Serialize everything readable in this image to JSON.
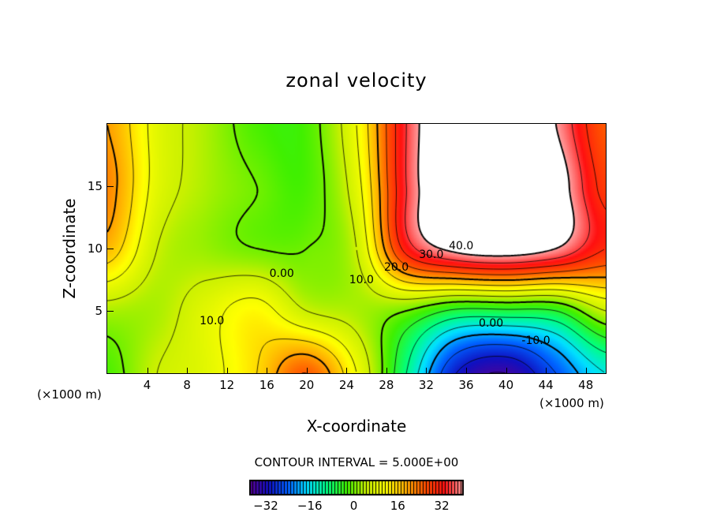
{
  "chart_data": {
    "type": "heatmap",
    "subtype": "filled contour",
    "title": "zonal velocity",
    "xlabel": "X-coordinate",
    "ylabel": "Z-coordinate",
    "x_unit_left": "(×1000 m)",
    "x_unit_right": "(×1000 m)",
    "xlim": [
      0,
      50
    ],
    "ylim": [
      0,
      20
    ],
    "xticks": [
      4,
      8,
      12,
      16,
      20,
      24,
      28,
      32,
      36,
      40,
      44,
      48
    ],
    "yticks": [
      5,
      10,
      15
    ],
    "contour_interval_text": "CONTOUR INTERVAL = 5.000E+00",
    "contour_interval": 5,
    "colorbar": {
      "min": -38,
      "max": 40,
      "ticks": [
        -32,
        -16,
        0,
        16,
        32
      ],
      "tick_labels": [
        "−32",
        "−16",
        "0",
        "16",
        "32"
      ],
      "above_max_color": "#ffffff"
    },
    "colormap": [
      "#5a0090",
      "#1010c0",
      "#0060ff",
      "#00e0ff",
      "#00ff80",
      "#40f000",
      "#c8f000",
      "#ffff00",
      "#ffb000",
      "#ff5000",
      "#ff1010",
      "#ffa0a0"
    ],
    "grid_x": [
      0,
      5,
      10,
      15,
      20,
      25,
      30,
      35,
      40,
      45,
      50
    ],
    "grid_z": [
      0,
      5,
      10,
      15,
      20
    ],
    "values": [
      [
        -2,
        5,
        8,
        15,
        25,
        10,
        -10,
        -30,
        -35,
        -25,
        -15
      ],
      [
        3,
        3,
        8,
        12,
        5,
        3,
        0,
        -6,
        -6,
        -5,
        5
      ],
      [
        18,
        5,
        2,
        0,
        0,
        5,
        32,
        42,
        44,
        40,
        30
      ],
      [
        22,
        8,
        3,
        0,
        -2,
        8,
        35,
        50,
        50,
        44,
        28
      ],
      [
        20,
        8,
        3,
        -2,
        -2,
        10,
        35,
        50,
        50,
        40,
        25
      ]
    ],
    "contour_labels": [
      {
        "text": "0.00",
        "x": 17.5,
        "z": 8
      },
      {
        "text": "10.0",
        "x": 25.5,
        "z": 7.5
      },
      {
        "text": "20.0",
        "x": 29,
        "z": 8.5
      },
      {
        "text": "30.0",
        "x": 32.5,
        "z": 9.5
      },
      {
        "text": "40.0",
        "x": 35.5,
        "z": 10.2
      },
      {
        "text": "0.00",
        "x": 38.5,
        "z": 4
      },
      {
        "text": "-10.0",
        "x": 43,
        "z": 2.6
      },
      {
        "text": "10.0",
        "x": 10.5,
        "z": 4.2
      }
    ]
  }
}
